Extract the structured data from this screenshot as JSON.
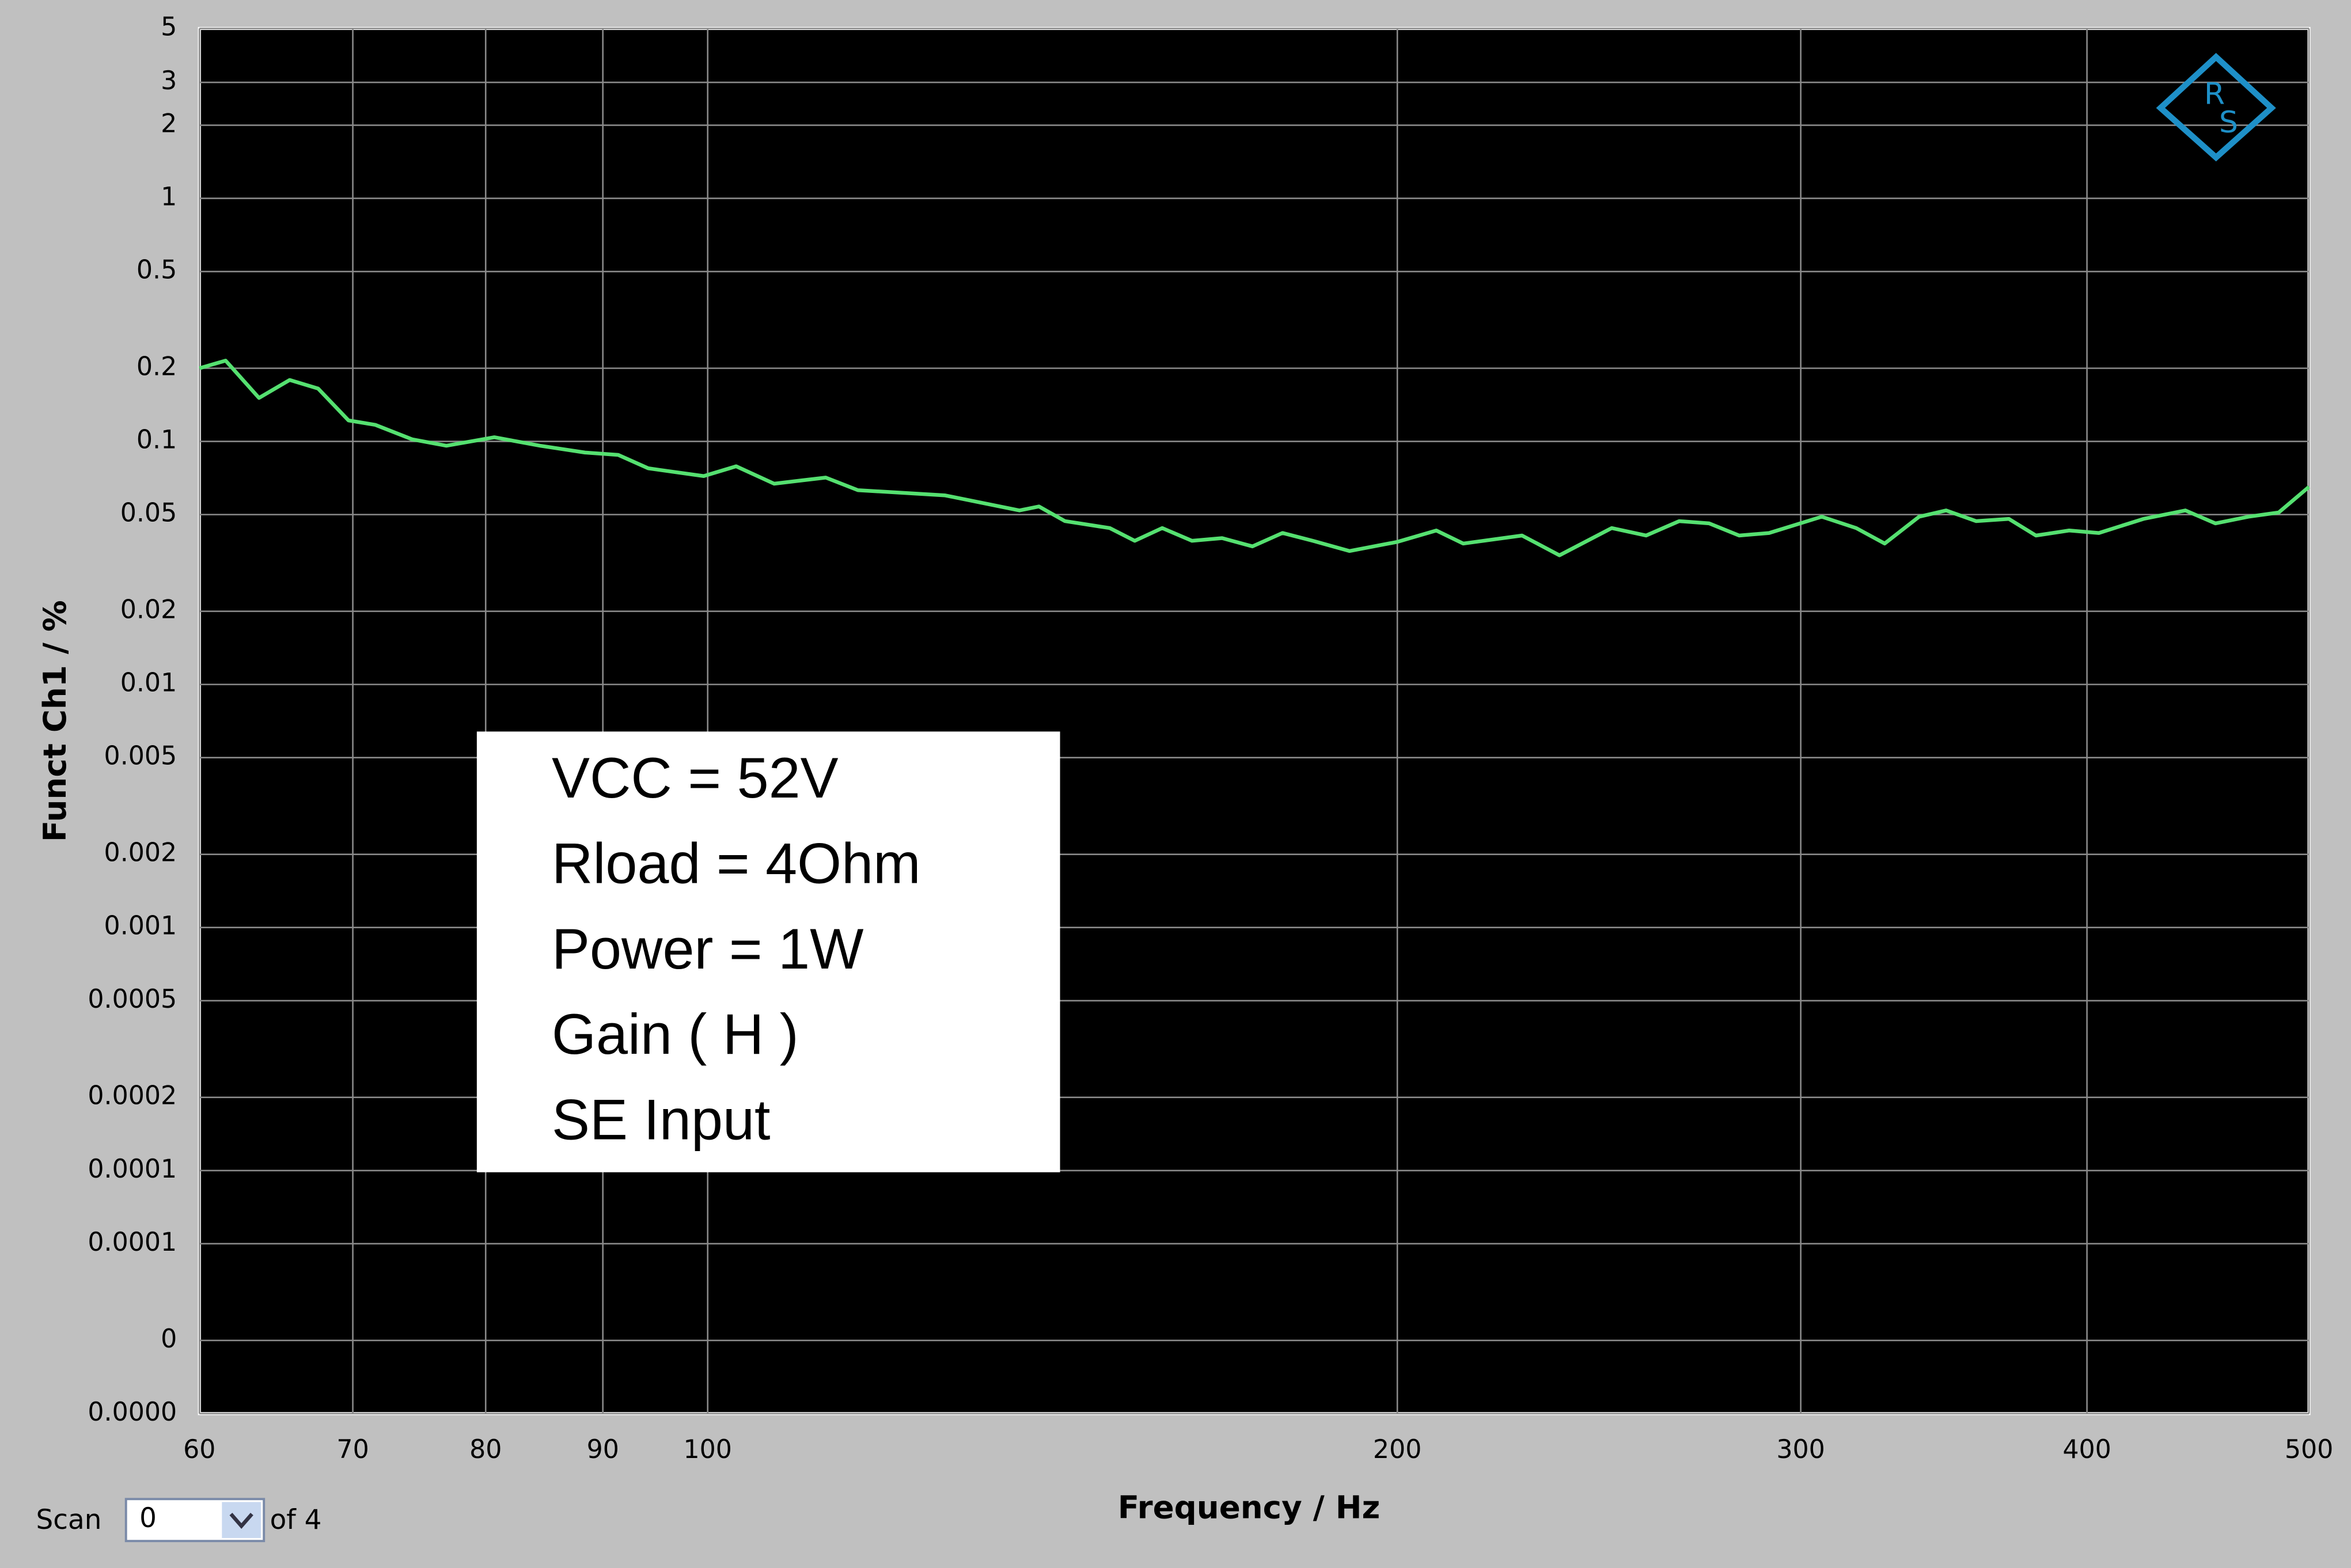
{
  "chart_data": {
    "type": "line",
    "x_label": "Frequency / Hz",
    "y_label": "Funct Ch1 / %",
    "x_log": true,
    "y_log": true,
    "grid": true,
    "color": "#55e070",
    "xlim": [
      60,
      500
    ],
    "xticks": [
      60,
      70,
      80,
      90,
      100,
      200,
      300,
      400,
      500
    ],
    "ylim": [
      1e-05,
      5
    ],
    "yticks": [
      5,
      3,
      2,
      1,
      0.5,
      0.2,
      0.1,
      0.05,
      0.02,
      0.01,
      0.005,
      0.002,
      0.001,
      0.0005,
      0.0002,
      0.0001,
      {
        "value": 5e-05,
        "label": "0.0001"
      },
      {
        "value": 2e-05,
        "label": "0"
      },
      {
        "value": 1e-05,
        "label": "0.0000"
      }
    ],
    "x": [
      60,
      61.6,
      63.7,
      65.7,
      67.6,
      69.7,
      71.6,
      74.3,
      76.9,
      80.7,
      84.5,
      88.4,
      91.4,
      94.2,
      99.6,
      102.9,
      106.9,
      112.6,
      116.3,
      126.9,
      136.8,
      139.5,
      143.2,
      149.8,
      153.6,
      157.9,
      162.7,
      167.7,
      172.9,
      178.2,
      183.7,
      190.6,
      200,
      208,
      213.7,
      226.7,
      235.4,
      248.1,
      256.8,
      265.5,
      273.6,
      282,
      290.6,
      306.4,
      317.2,
      326.4,
      337.9,
      347.2,
      357.8,
      369.8,
      380,
      392.9,
      404.8,
      423.4,
      441.6,
      455.1,
      470.5,
      485,
      500
    ],
    "values": [
      0.2,
      0.215,
      0.151,
      0.179,
      0.165,
      0.122,
      0.117,
      0.102,
      0.096,
      0.104,
      0.096,
      0.09,
      0.088,
      0.0775,
      0.072,
      0.079,
      0.067,
      0.071,
      0.063,
      0.06,
      0.052,
      0.054,
      0.047,
      0.044,
      0.039,
      0.044,
      0.039,
      0.04,
      0.037,
      0.042,
      0.039,
      0.0354,
      0.0386,
      0.043,
      0.038,
      0.041,
      0.034,
      0.044,
      0.041,
      0.047,
      0.046,
      0.041,
      0.042,
      0.049,
      0.044,
      0.038,
      0.049,
      0.052,
      0.047,
      0.048,
      0.041,
      0.043,
      0.042,
      0.048,
      0.052,
      0.046,
      0.049,
      0.051,
      0.065
    ],
    "annotation": [
      "VCC = 52V",
      "Rload = 4Ohm",
      "Power = 1W",
      "Gain ( H )",
      "SE Input"
    ],
    "logo": [
      "R",
      "S"
    ]
  },
  "controls": {
    "scan_label": "Scan",
    "scan_value": "0",
    "scan_total": "of 4"
  }
}
